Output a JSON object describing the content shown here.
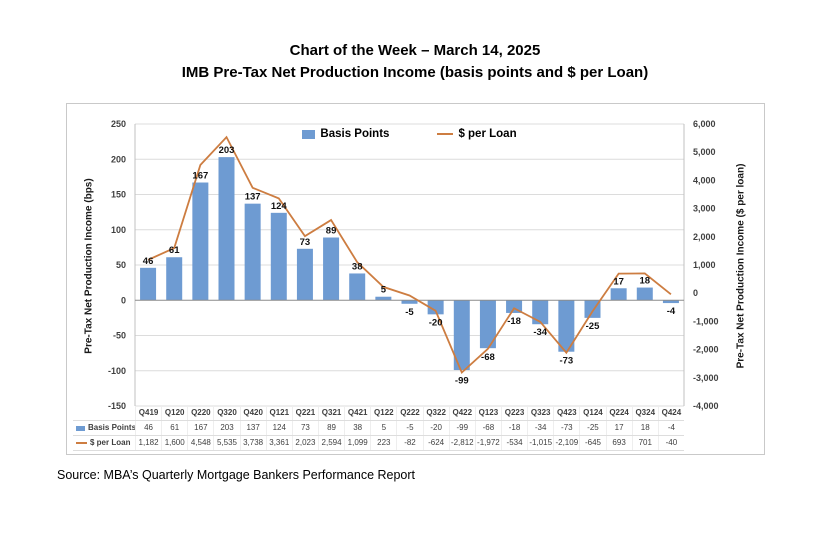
{
  "title": {
    "line1": "Chart of the Week – March 14, 2025",
    "line2": "IMB Pre-Tax Net Production Income (basis points and $ per Loan)"
  },
  "source": "Source: MBA’s Quarterly Mortgage Bankers Performance Report",
  "legend": {
    "bars": "Basis Points",
    "line": "$ per Loan"
  },
  "axes": {
    "left_title": "Pre-Tax Net Production Income (bps)",
    "right_title": "Pre-Tax Net Production Income ($ per loan)",
    "left_ticks": [
      "250",
      "200",
      "150",
      "100",
      "50",
      "0",
      "-50",
      "-100",
      "-150"
    ],
    "right_ticks": [
      "6,000",
      "5,000",
      "4,000",
      "3,000",
      "2,000",
      "1,000",
      "0",
      "-1,000",
      "-2,000",
      "-3,000",
      "-4,000"
    ]
  },
  "colors": {
    "bar": "#6E9BD2",
    "line": "#CD7D41",
    "grid": "#DCDCDC",
    "zero_axis": "#8C8C8C",
    "axis_line": "#C0C0C0",
    "chart_border": "#C9C9C9",
    "table_border": "#DDDDDD"
  },
  "chart_data": {
    "type": "bar",
    "subtype": "combo-bar-line-dual-axis",
    "title": "IMB Pre-Tax Net Production Income (basis points and $ per Loan)",
    "categories": [
      "Q419",
      "Q120",
      "Q220",
      "Q320",
      "Q420",
      "Q121",
      "Q221",
      "Q321",
      "Q421",
      "Q122",
      "Q222",
      "Q322",
      "Q422",
      "Q123",
      "Q223",
      "Q323",
      "Q423",
      "Q124",
      "Q224",
      "Q324",
      "Q424"
    ],
    "series": [
      {
        "name": "Basis Points",
        "type": "bar",
        "axis": "left",
        "values": [
          46,
          61,
          167,
          203,
          137,
          124,
          73,
          89,
          38,
          5,
          -5,
          -20,
          -99,
          -68,
          -18,
          -34,
          -73,
          -25,
          17,
          18,
          -4
        ]
      },
      {
        "name": "$ per Loan",
        "type": "line",
        "axis": "right",
        "values": [
          1182,
          1600,
          4548,
          5535,
          3738,
          3361,
          2023,
          2594,
          1099,
          223,
          -82,
          -624,
          -2812,
          -1972,
          -534,
          -1015,
          -2109,
          -645,
          693,
          701,
          -40
        ]
      }
    ],
    "left_axis": {
      "label": "Pre-Tax Net Production Income (bps)",
      "min": -150,
      "max": 250,
      "step": 50
    },
    "right_axis": {
      "label": "Pre-Tax Net Production Income ($ per loan)",
      "min": -4000,
      "max": 6000,
      "step": 1000
    },
    "grid": true,
    "legend_position": "top-center",
    "data_labels": true,
    "table": {
      "row_labels": [
        "Basis Points",
        "$ per Loan"
      ],
      "rows": [
        [
          "46",
          "61",
          "167",
          "203",
          "137",
          "124",
          "73",
          "89",
          "38",
          "5",
          "-5",
          "-20",
          "-99",
          "-68",
          "-18",
          "-34",
          "-73",
          "-25",
          "17",
          "18",
          "-4"
        ],
        [
          "1,182",
          "1,600",
          "4,548",
          "5,535",
          "3,738",
          "3,361",
          "2,023",
          "2,594",
          "1,099",
          "223",
          "-82",
          "-624",
          "-2,812",
          "-1,972",
          "-534",
          "-1,015",
          "-2,109",
          "-645",
          "693",
          "701",
          "-40"
        ]
      ]
    }
  }
}
